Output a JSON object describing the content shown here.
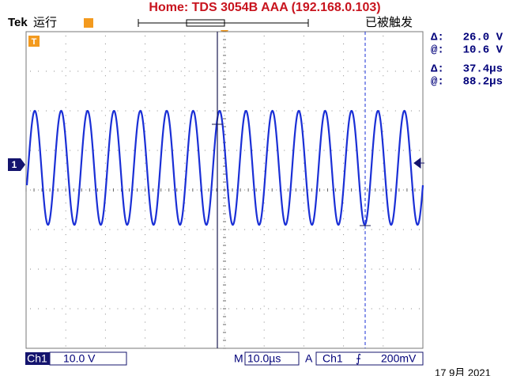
{
  "header": {
    "title": "Home:  TDS 3054B  AAA  (192.168.0.103)",
    "brand": "Tek",
    "status": "运行",
    "trigger_state": "已被触发"
  },
  "markers": {
    "trigger": "T",
    "channel": "1"
  },
  "readouts": [
    {
      "label": "Δ:",
      "value": "26.0 V"
    },
    {
      "label": "@:",
      "value": "10.6 V"
    },
    {
      "label": "Δ:",
      "value": "37.4µs"
    },
    {
      "label": "@:",
      "value": "88.2µs"
    }
  ],
  "footer": {
    "channel": "Ch1",
    "scale": "10.0 V",
    "time_label": "M",
    "time_scale": "10.0µs",
    "trigger_label": "A",
    "trigger_source": "Ch1",
    "trigger_slope": "⨍",
    "trigger_level": "200mV",
    "date": "17 9月  2021"
  }
}
